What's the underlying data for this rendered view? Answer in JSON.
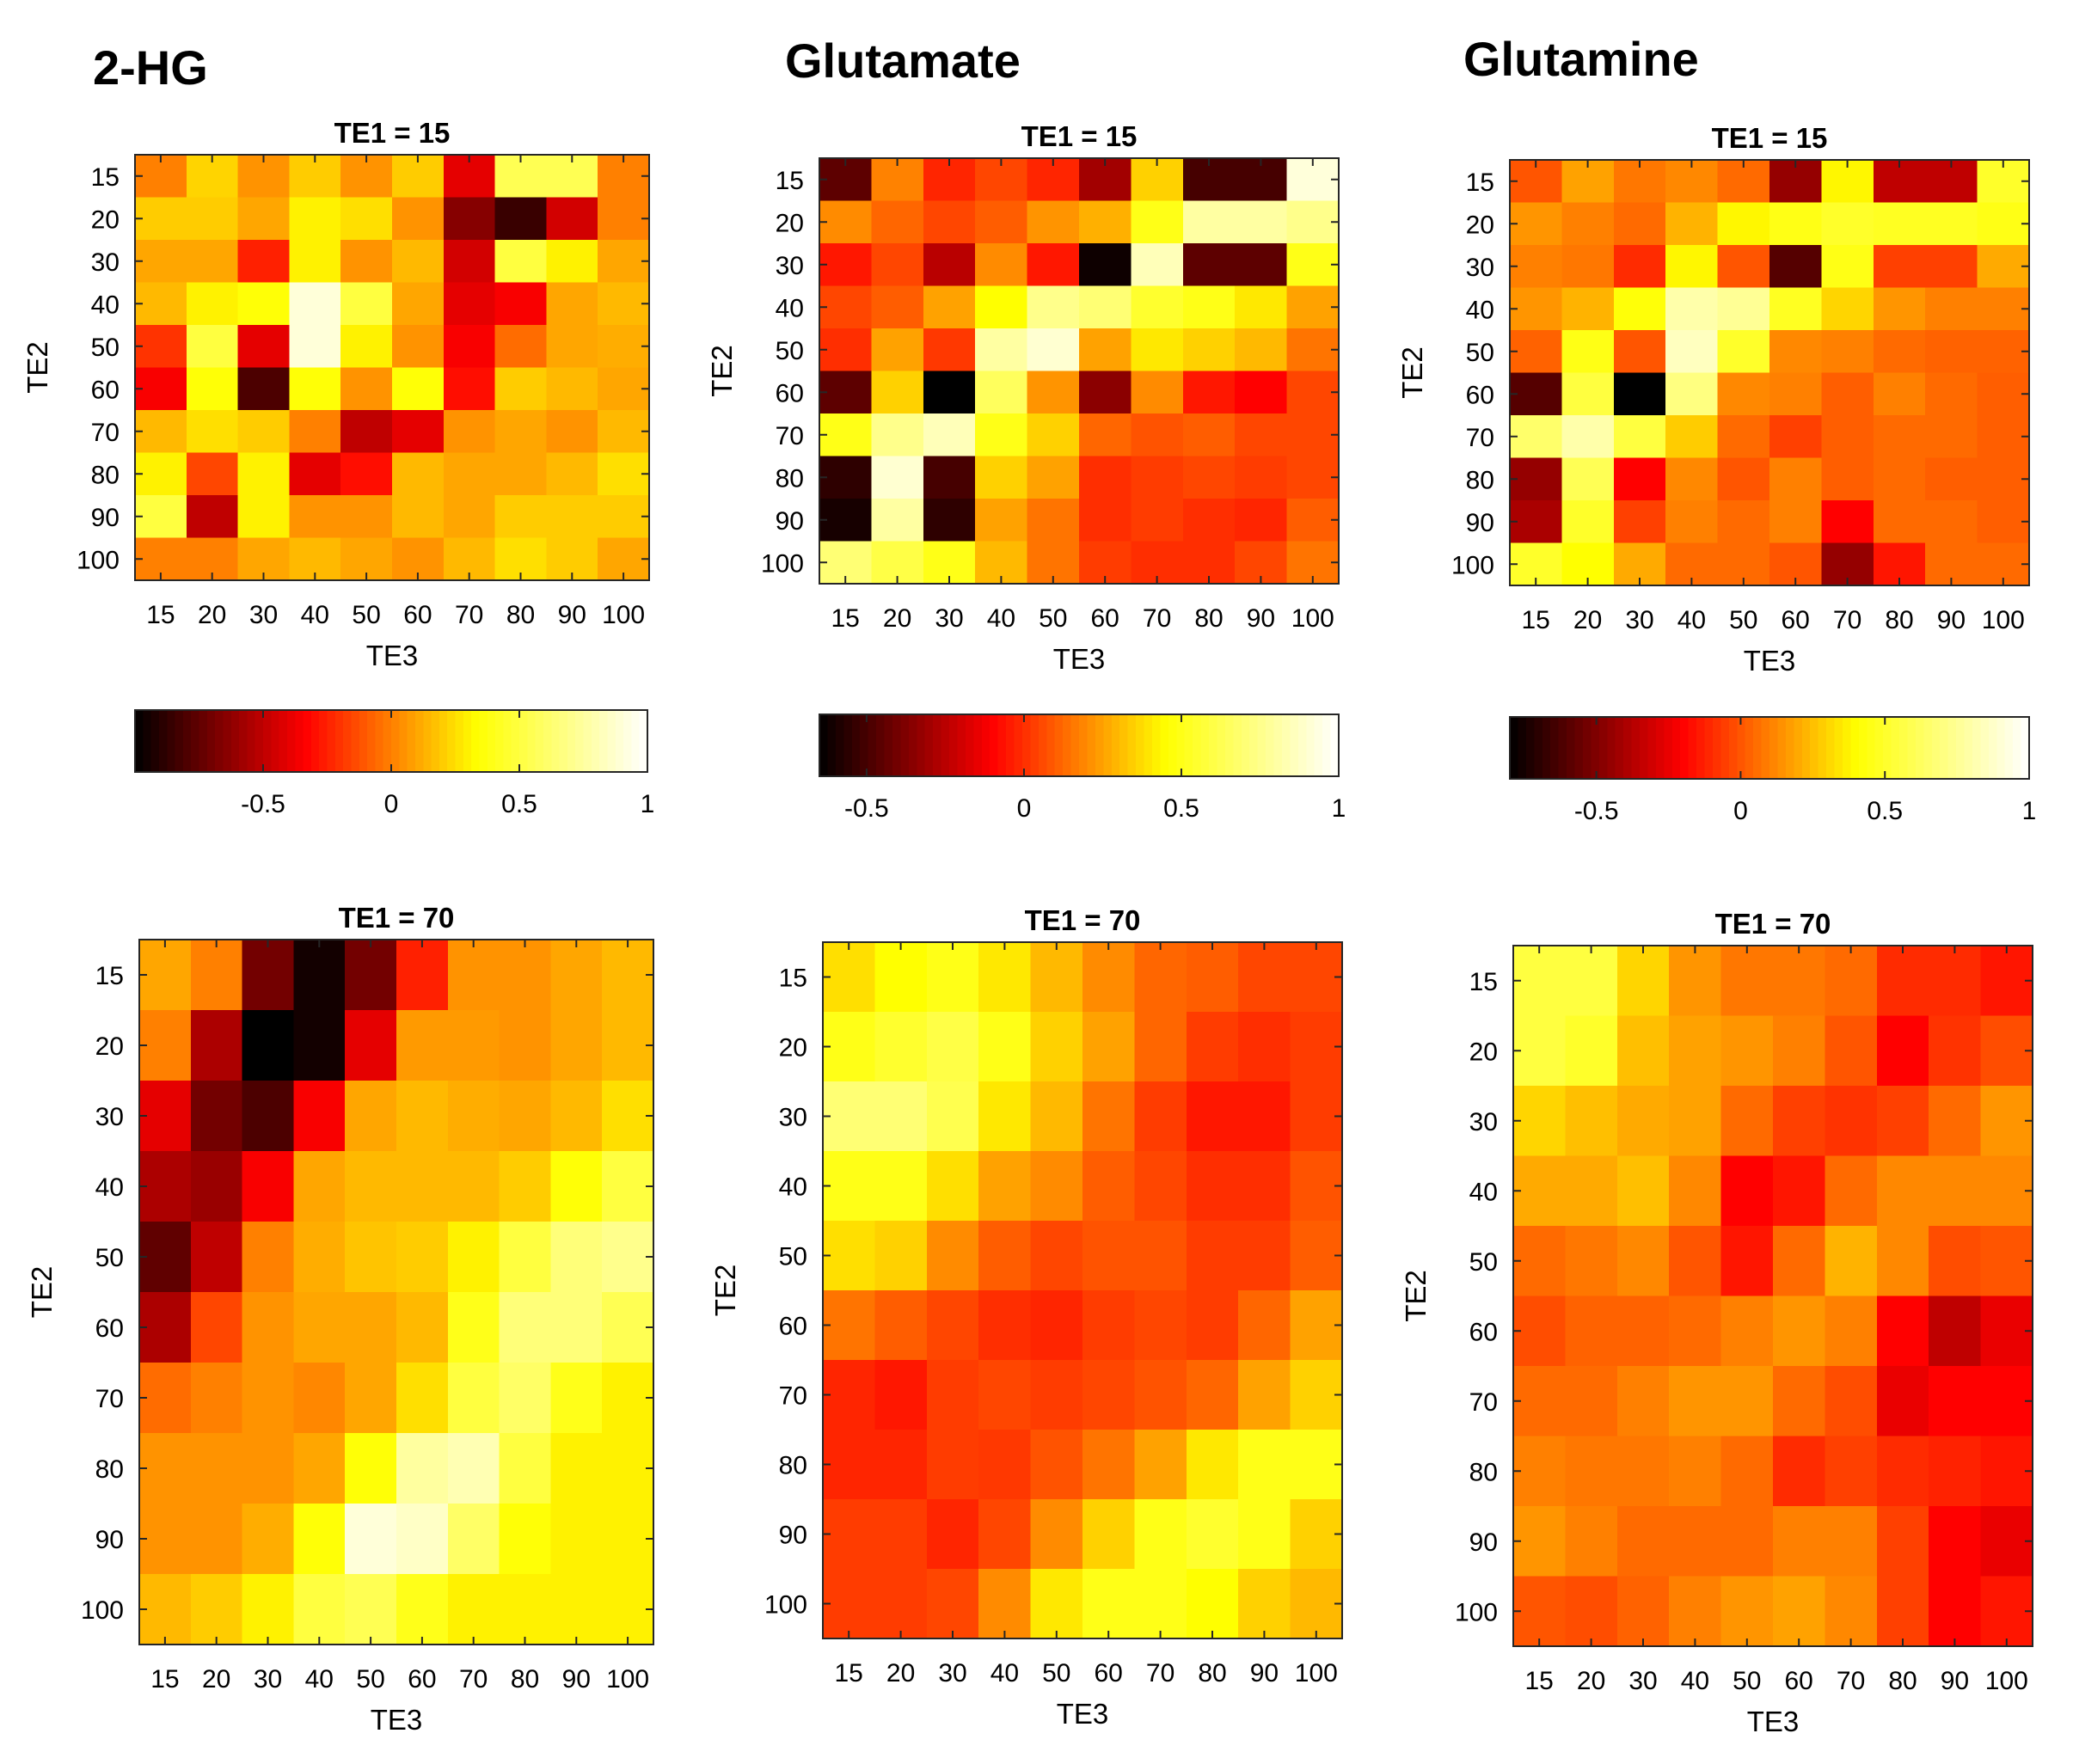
{
  "figure": {
    "columns": [
      "2-HG",
      "Glutamate",
      "Glutamine"
    ],
    "colormap": "hot",
    "colormap_stops": [
      "#000000",
      "#ff0000",
      "#ffff00",
      "#ffffff"
    ]
  },
  "chart_data": [
    {
      "type": "heatmap",
      "metabolite": "2-HG",
      "title": "TE1 = 15",
      "xlabel": "TE3",
      "ylabel": "TE2",
      "x_categories": [
        "15",
        "20",
        "30",
        "40",
        "50",
        "60",
        "70",
        "80",
        "90",
        "100"
      ],
      "y_categories": [
        "15",
        "20",
        "30",
        "40",
        "50",
        "60",
        "70",
        "80",
        "90",
        "100"
      ],
      "clim": [
        -1,
        1
      ],
      "colorbar": {
        "ticks": [
          -0.5,
          0,
          0.5,
          1
        ],
        "tick_labels": [
          "-0.5",
          "0",
          "0.5",
          "1"
        ]
      },
      "values": [
        [
          0.0,
          0.22,
          0.05,
          0.2,
          0.05,
          0.2,
          -0.4,
          0.55,
          0.55,
          0.0
        ],
        [
          0.2,
          0.2,
          0.1,
          0.3,
          0.25,
          0.05,
          -0.65,
          -0.85,
          -0.45,
          0.0
        ],
        [
          0.1,
          0.1,
          -0.25,
          0.3,
          0.05,
          0.15,
          -0.45,
          0.5,
          0.3,
          0.1
        ],
        [
          0.15,
          0.3,
          0.35,
          0.9,
          0.5,
          0.1,
          -0.4,
          -0.35,
          0.1,
          0.15
        ],
        [
          -0.2,
          0.5,
          -0.4,
          0.9,
          0.3,
          0.05,
          -0.35,
          -0.05,
          0.1,
          0.12
        ],
        [
          -0.35,
          0.35,
          -0.8,
          0.35,
          0.05,
          0.35,
          -0.3,
          0.2,
          0.15,
          0.1
        ],
        [
          0.15,
          0.25,
          0.2,
          0.0,
          -0.5,
          -0.4,
          0.05,
          0.1,
          0.05,
          0.15
        ],
        [
          0.3,
          -0.15,
          0.3,
          -0.4,
          -0.3,
          0.15,
          0.1,
          0.1,
          0.15,
          0.25
        ],
        [
          0.5,
          -0.5,
          0.3,
          0.05,
          0.05,
          0.15,
          0.1,
          0.2,
          0.2,
          0.2
        ],
        [
          0.0,
          0.0,
          0.1,
          0.15,
          0.1,
          0.05,
          0.15,
          0.25,
          0.2,
          0.1
        ]
      ]
    },
    {
      "type": "heatmap",
      "metabolite": "Glutamate",
      "title": "TE1 = 15",
      "xlabel": "TE3",
      "ylabel": "TE2",
      "x_categories": [
        "15",
        "20",
        "30",
        "40",
        "50",
        "60",
        "70",
        "80",
        "90",
        "100"
      ],
      "y_categories": [
        "15",
        "20",
        "30",
        "40",
        "50",
        "60",
        "70",
        "80",
        "90",
        "100"
      ],
      "clim": [
        -0.65,
        1
      ],
      "colorbar": {
        "ticks": [
          -0.5,
          0,
          0.5,
          1
        ],
        "tick_labels": [
          "-0.5",
          "0",
          "0.5",
          "1"
        ]
      },
      "values": [
        [
          -0.45,
          0.18,
          -0.02,
          0.05,
          -0.02,
          -0.3,
          0.35,
          -0.5,
          -0.5,
          0.92
        ],
        [
          0.2,
          0.12,
          0.05,
          0.1,
          0.22,
          0.28,
          0.5,
          0.8,
          0.8,
          0.75
        ],
        [
          -0.05,
          0.05,
          -0.25,
          0.2,
          -0.05,
          -0.62,
          0.85,
          -0.45,
          -0.45,
          0.5
        ],
        [
          0.05,
          0.1,
          0.25,
          0.45,
          0.75,
          0.7,
          0.55,
          0.5,
          0.4,
          0.25
        ],
        [
          0.0,
          0.25,
          0.02,
          0.8,
          0.9,
          0.25,
          0.4,
          0.35,
          0.3,
          0.15
        ],
        [
          -0.45,
          0.35,
          -0.65,
          0.65,
          0.22,
          -0.35,
          0.2,
          -0.05,
          -0.1,
          0.05
        ],
        [
          0.5,
          0.75,
          0.85,
          0.5,
          0.35,
          0.12,
          0.08,
          0.1,
          0.05,
          0.05
        ],
        [
          -0.55,
          0.9,
          -0.5,
          0.35,
          0.25,
          0.0,
          0.03,
          0.05,
          0.03,
          0.05
        ],
        [
          -0.6,
          0.8,
          -0.55,
          0.25,
          0.15,
          0.0,
          0.03,
          0.0,
          -0.02,
          0.1
        ],
        [
          0.7,
          0.6,
          0.5,
          0.3,
          0.15,
          0.03,
          0.0,
          0.0,
          0.05,
          0.15
        ]
      ]
    },
    {
      "type": "heatmap",
      "metabolite": "Glutamine",
      "title": "TE1 = 15",
      "xlabel": "TE3",
      "ylabel": "TE2",
      "x_categories": [
        "15",
        "20",
        "30",
        "40",
        "50",
        "60",
        "70",
        "80",
        "90",
        "100"
      ],
      "y_categories": [
        "15",
        "20",
        "30",
        "40",
        "50",
        "60",
        "70",
        "80",
        "90",
        "100"
      ],
      "clim": [
        -0.8,
        1
      ],
      "colorbar": {
        "ticks": [
          -0.5,
          0,
          0.5,
          1
        ],
        "tick_labels": [
          "-0.5",
          "0",
          "0.5",
          "1"
        ]
      },
      "values": [
        [
          0.0,
          0.18,
          0.08,
          0.12,
          0.05,
          -0.45,
          0.38,
          -0.35,
          -0.35,
          0.5
        ],
        [
          0.15,
          0.1,
          0.05,
          0.22,
          0.38,
          0.45,
          0.5,
          0.48,
          0.48,
          0.45
        ],
        [
          0.1,
          0.08,
          -0.1,
          0.38,
          0.0,
          -0.6,
          0.45,
          -0.05,
          -0.05,
          0.2
        ],
        [
          0.15,
          0.22,
          0.42,
          0.8,
          0.75,
          0.48,
          0.3,
          0.15,
          0.1,
          0.1
        ],
        [
          0.03,
          0.45,
          0.0,
          0.85,
          0.5,
          0.12,
          0.1,
          0.05,
          0.03,
          0.03
        ],
        [
          -0.6,
          0.55,
          -0.8,
          0.7,
          0.12,
          0.1,
          0.02,
          0.1,
          0.05,
          0.02
        ],
        [
          0.65,
          0.8,
          0.55,
          0.28,
          0.05,
          -0.05,
          0.02,
          0.05,
          0.05,
          0.02
        ],
        [
          -0.45,
          0.6,
          -0.2,
          0.12,
          0.0,
          0.1,
          0.02,
          0.05,
          0.02,
          0.02
        ],
        [
          -0.4,
          0.5,
          -0.05,
          0.1,
          0.05,
          0.1,
          -0.2,
          0.05,
          0.05,
          0.02
        ],
        [
          0.5,
          0.4,
          0.2,
          0.05,
          0.05,
          0.0,
          -0.45,
          -0.15,
          0.05,
          0.05
        ]
      ]
    },
    {
      "type": "heatmap",
      "metabolite": "2-HG",
      "title": "TE1 = 70",
      "xlabel": "TE3",
      "ylabel": "TE2",
      "x_categories": [
        "15",
        "20",
        "30",
        "40",
        "50",
        "60",
        "70",
        "80",
        "90",
        "100"
      ],
      "y_categories": [
        "15",
        "20",
        "30",
        "40",
        "50",
        "60",
        "70",
        "80",
        "90",
        "100"
      ],
      "clim": [
        -1,
        1
      ],
      "values": [
        [
          0.1,
          0.0,
          -0.7,
          -0.95,
          -0.7,
          -0.25,
          0.05,
          0.05,
          0.1,
          0.15
        ],
        [
          0.0,
          -0.55,
          -1.0,
          -0.95,
          -0.4,
          0.07,
          0.07,
          0.05,
          0.1,
          0.15
        ],
        [
          -0.4,
          -0.7,
          -0.8,
          -0.35,
          0.1,
          0.15,
          0.12,
          0.1,
          0.15,
          0.25
        ],
        [
          -0.55,
          -0.6,
          -0.35,
          0.1,
          0.15,
          0.15,
          0.15,
          0.2,
          0.35,
          0.5
        ],
        [
          -0.75,
          -0.5,
          0.0,
          0.12,
          0.18,
          0.2,
          0.3,
          0.5,
          0.65,
          0.7
        ],
        [
          -0.55,
          -0.15,
          0.05,
          0.1,
          0.1,
          0.15,
          0.4,
          0.65,
          0.65,
          0.55
        ],
        [
          -0.05,
          0.0,
          0.05,
          0.02,
          0.1,
          0.25,
          0.5,
          0.6,
          0.4,
          0.3
        ],
        [
          0.05,
          0.05,
          0.05,
          0.1,
          0.35,
          0.75,
          0.8,
          0.5,
          0.3,
          0.3
        ],
        [
          0.05,
          0.05,
          0.12,
          0.35,
          0.9,
          0.85,
          0.6,
          0.35,
          0.3,
          0.3
        ],
        [
          0.15,
          0.2,
          0.3,
          0.5,
          0.55,
          0.4,
          0.3,
          0.3,
          0.3,
          0.3
        ]
      ]
    },
    {
      "type": "heatmap",
      "metabolite": "Glutamate",
      "title": "TE1 = 70",
      "xlabel": "TE3",
      "ylabel": "TE2",
      "x_categories": [
        "15",
        "20",
        "30",
        "40",
        "50",
        "60",
        "70",
        "80",
        "90",
        "100"
      ],
      "y_categories": [
        "15",
        "20",
        "30",
        "40",
        "50",
        "60",
        "70",
        "80",
        "90",
        "100"
      ],
      "clim": [
        -0.65,
        1
      ],
      "values": [
        [
          0.38,
          0.45,
          0.5,
          0.4,
          0.3,
          0.2,
          0.12,
          0.1,
          0.05,
          0.05
        ],
        [
          0.5,
          0.55,
          0.6,
          0.5,
          0.35,
          0.25,
          0.12,
          0.03,
          0.0,
          0.03
        ],
        [
          0.7,
          0.7,
          0.62,
          0.4,
          0.3,
          0.15,
          0.03,
          -0.05,
          -0.05,
          0.03
        ],
        [
          0.5,
          0.5,
          0.38,
          0.25,
          0.2,
          0.1,
          0.05,
          0.0,
          0.0,
          0.08
        ],
        [
          0.38,
          0.35,
          0.2,
          0.1,
          0.05,
          0.08,
          0.08,
          0.03,
          0.03,
          0.1
        ],
        [
          0.15,
          0.1,
          0.05,
          0.0,
          -0.02,
          0.03,
          0.05,
          0.03,
          0.12,
          0.25
        ],
        [
          -0.02,
          -0.05,
          0.03,
          0.05,
          0.03,
          0.05,
          0.08,
          0.12,
          0.25,
          0.35
        ],
        [
          -0.02,
          -0.02,
          0.03,
          0.02,
          0.08,
          0.15,
          0.25,
          0.4,
          0.5,
          0.5
        ],
        [
          0.03,
          0.03,
          -0.02,
          0.05,
          0.2,
          0.35,
          0.5,
          0.55,
          0.5,
          0.35
        ],
        [
          0.03,
          0.03,
          0.05,
          0.2,
          0.4,
          0.5,
          0.5,
          0.45,
          0.35,
          0.3
        ]
      ]
    },
    {
      "type": "heatmap",
      "metabolite": "Glutamine",
      "title": "TE1 = 70",
      "xlabel": "TE3",
      "ylabel": "TE2",
      "x_categories": [
        "15",
        "20",
        "30",
        "40",
        "50",
        "60",
        "70",
        "80",
        "90",
        "100"
      ],
      "y_categories": [
        "15",
        "20",
        "30",
        "40",
        "50",
        "60",
        "70",
        "80",
        "90",
        "100"
      ],
      "clim": [
        -0.8,
        1
      ],
      "values": [
        [
          0.55,
          0.55,
          0.3,
          0.15,
          0.08,
          0.08,
          0.05,
          -0.1,
          -0.1,
          -0.15
        ],
        [
          0.55,
          0.5,
          0.25,
          0.18,
          0.15,
          0.1,
          0.0,
          -0.2,
          -0.08,
          -0.02
        ],
        [
          0.3,
          0.25,
          0.2,
          0.18,
          0.05,
          -0.05,
          -0.08,
          -0.05,
          0.05,
          0.15
        ],
        [
          0.2,
          0.2,
          0.25,
          0.12,
          -0.2,
          -0.15,
          0.05,
          0.12,
          0.12,
          0.12
        ],
        [
          0.05,
          0.08,
          0.12,
          0.0,
          -0.15,
          0.05,
          0.22,
          0.12,
          -0.02,
          0.0
        ],
        [
          -0.02,
          0.03,
          0.03,
          0.05,
          0.1,
          0.15,
          0.1,
          -0.2,
          -0.35,
          -0.25
        ],
        [
          0.05,
          0.05,
          0.1,
          0.15,
          0.15,
          0.05,
          -0.02,
          -0.25,
          -0.2,
          -0.2
        ],
        [
          0.1,
          0.08,
          0.08,
          0.1,
          0.05,
          -0.1,
          -0.05,
          -0.1,
          -0.12,
          -0.15
        ],
        [
          0.15,
          0.1,
          0.05,
          0.05,
          0.05,
          0.1,
          0.1,
          -0.05,
          -0.2,
          -0.25
        ],
        [
          0.0,
          -0.02,
          0.03,
          0.1,
          0.15,
          0.18,
          0.12,
          -0.05,
          -0.2,
          -0.15
        ]
      ]
    }
  ]
}
